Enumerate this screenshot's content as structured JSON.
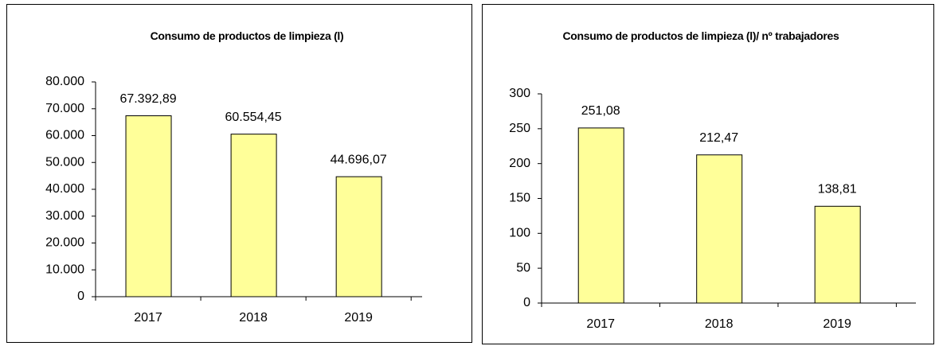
{
  "chart_data": [
    {
      "type": "bar",
      "title": "Consumo de productos de limpieza  (l)",
      "categories": [
        "2017",
        "2018",
        "2019"
      ],
      "values": [
        67392.89,
        60554.45,
        44696.07
      ],
      "value_labels": [
        "67.392,89",
        "60.554,45",
        "44.696,07"
      ],
      "color": "#ffff99",
      "ylim": [
        0,
        80000
      ],
      "yticks": [
        0,
        {
          "value": 10000,
          "label": "10.000"
        },
        {
          "value": 20000,
          "label": "20.000"
        },
        {
          "value": 30000,
          "label": "30.000"
        },
        {
          "value": 40000,
          "label": "40.000"
        },
        {
          "value": 50000,
          "label": "50.000"
        },
        {
          "value": 60000,
          "label": "60.000"
        },
        {
          "value": 70000,
          "label": "70.000"
        },
        {
          "value": 80000,
          "label": "80.000"
        }
      ],
      "grid": false
    },
    {
      "type": "bar",
      "title": "Consumo de productos de limpieza (l)/ nº trabajadores",
      "categories": [
        "2017",
        "2018",
        "2019"
      ],
      "values": [
        251.08,
        212.47,
        138.81
      ],
      "value_labels": [
        "251,08",
        "212,47",
        "138,81"
      ],
      "color": "#ffff99",
      "ylim": [
        0,
        300
      ],
      "yticks": [
        0,
        50,
        100,
        150,
        200,
        250,
        300
      ],
      "grid": false
    }
  ]
}
